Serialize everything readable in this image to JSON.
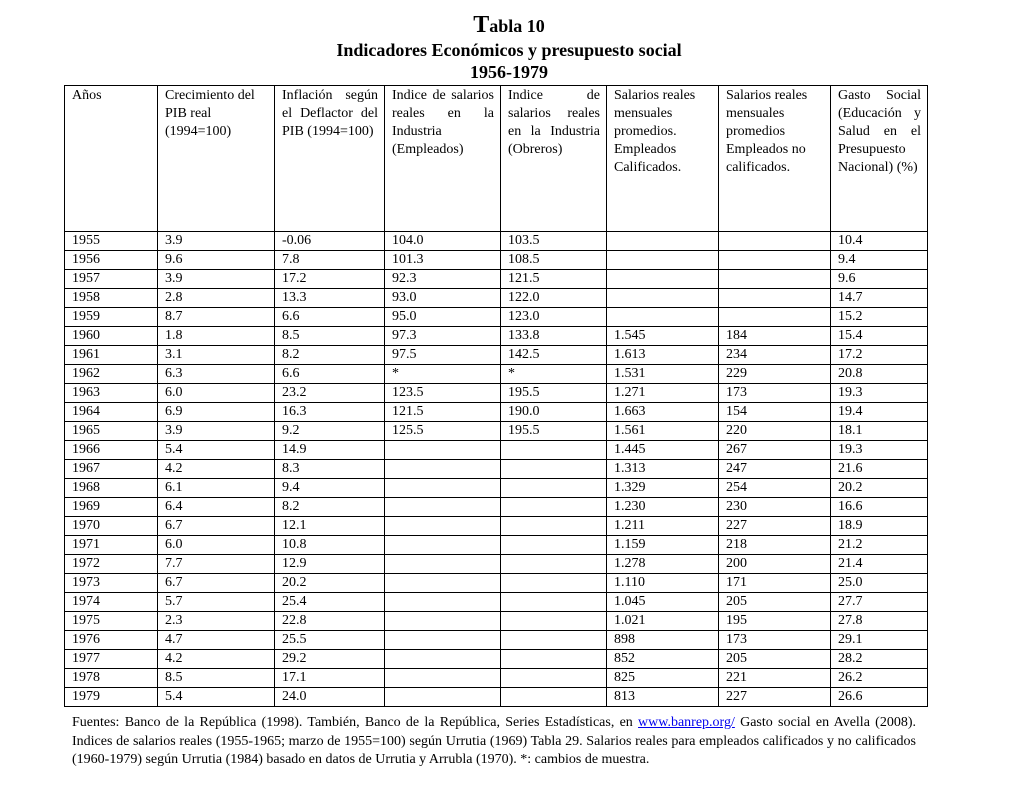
{
  "title": {
    "big_letter": "T",
    "rest": "abla 10",
    "subtitle": "Indicadores Económicos y presupuesto social",
    "period": "1956-1979"
  },
  "headers": [
    "Años",
    "Crecimiento del PIB real (1994=100)",
    "Inflación según el Deflactor del PIB (1994=100)",
    "Indice de salarios reales en la Industria (Empleados)",
    "Indice de salarios reales en la Industria (Obreros)",
    "Salarios reales mensuales promedios. Empleados Calificados.",
    "Salarios reales mensuales promedios Empleados no calificados.",
    "Gasto Social (Educación y Salud en el Presupuesto Nacional) (%)"
  ],
  "rows": [
    [
      "1955",
      "3.9",
      "-0.06",
      "104.0",
      "103.5",
      "",
      "",
      "10.4"
    ],
    [
      "1956",
      "9.6",
      "7.8",
      "101.3",
      "108.5",
      "",
      "",
      "9.4"
    ],
    [
      "1957",
      "3.9",
      "17.2",
      "92.3",
      "121.5",
      "",
      "",
      "9.6"
    ],
    [
      "1958",
      "2.8",
      "13.3",
      "93.0",
      "122.0",
      "",
      "",
      "14.7"
    ],
    [
      "1959",
      "8.7",
      "6.6",
      "95.0",
      "123.0",
      "",
      "",
      "15.2"
    ],
    [
      "1960",
      "1.8",
      "8.5",
      "97.3",
      "133.8",
      "1.545",
      "184",
      "15.4"
    ],
    [
      "1961",
      "3.1",
      "8.2",
      "97.5",
      "142.5",
      "1.613",
      "234",
      "17.2"
    ],
    [
      "1962",
      "6.3",
      "6.6",
      "*",
      "*",
      "1.531",
      "229",
      "20.8"
    ],
    [
      "1963",
      "6.0",
      "23.2",
      "123.5",
      "195.5",
      "1.271",
      "173",
      "19.3"
    ],
    [
      "1964",
      "6.9",
      "16.3",
      "121.5",
      "190.0",
      "1.663",
      "154",
      "19.4"
    ],
    [
      "1965",
      "3.9",
      "9.2",
      "125.5",
      "195.5",
      "1.561",
      "220",
      "18.1"
    ],
    [
      "1966",
      "5.4",
      "14.9",
      "",
      "",
      "1.445",
      "267",
      "19.3"
    ],
    [
      "1967",
      "4.2",
      "8.3",
      "",
      "",
      "1.313",
      "247",
      "21.6"
    ],
    [
      "1968",
      "6.1",
      "9.4",
      "",
      "",
      "1.329",
      "254",
      "20.2"
    ],
    [
      "1969",
      "6.4",
      "8.2",
      "",
      "",
      "1.230",
      "230",
      "16.6"
    ],
    [
      "1970",
      "6.7",
      "12.1",
      "",
      "",
      "1.211",
      "227",
      "18.9"
    ],
    [
      "1971",
      "6.0",
      "10.8",
      "",
      "",
      "1.159",
      "218",
      "21.2"
    ],
    [
      "1972",
      "7.7",
      "12.9",
      "",
      "",
      "1.278",
      "200",
      "21.4"
    ],
    [
      "1973",
      "6.7",
      "20.2",
      "",
      "",
      "1.110",
      "171",
      "25.0"
    ],
    [
      "1974",
      "5.7",
      "25.4",
      "",
      "",
      "1.045",
      "205",
      "27.7"
    ],
    [
      "1975",
      "2.3",
      "22.8",
      "",
      "",
      "1.021",
      "195",
      "27.8"
    ],
    [
      "1976",
      "4.7",
      "25.5",
      "",
      "",
      "898",
      "173",
      "29.1"
    ],
    [
      "1977",
      "4.2",
      "29.2",
      "",
      "",
      "852",
      "205",
      "28.2"
    ],
    [
      "1978",
      "8.5",
      "17.1",
      "",
      "",
      "825",
      "221",
      "26.2"
    ],
    [
      "1979",
      "5.4",
      "24.0",
      "",
      "",
      "813",
      "227",
      "26.6"
    ]
  ],
  "footnote": {
    "before_link": "Fuentes: Banco de la República (1998). También, Banco de la República, Series Estadísticas, en ",
    "link": "www.banrep.org/",
    "after_link": " Gasto social en Avella (2008). Indices de salarios reales (1955-1965; marzo de 1955=100) según Urrutia (1969) Tabla 29. Salarios reales para empleados calificados y no calificados (1960-1979) según Urrutia (1984) basado en datos de Urrutia y Arrubla (1970). *: cambios de muestra."
  }
}
